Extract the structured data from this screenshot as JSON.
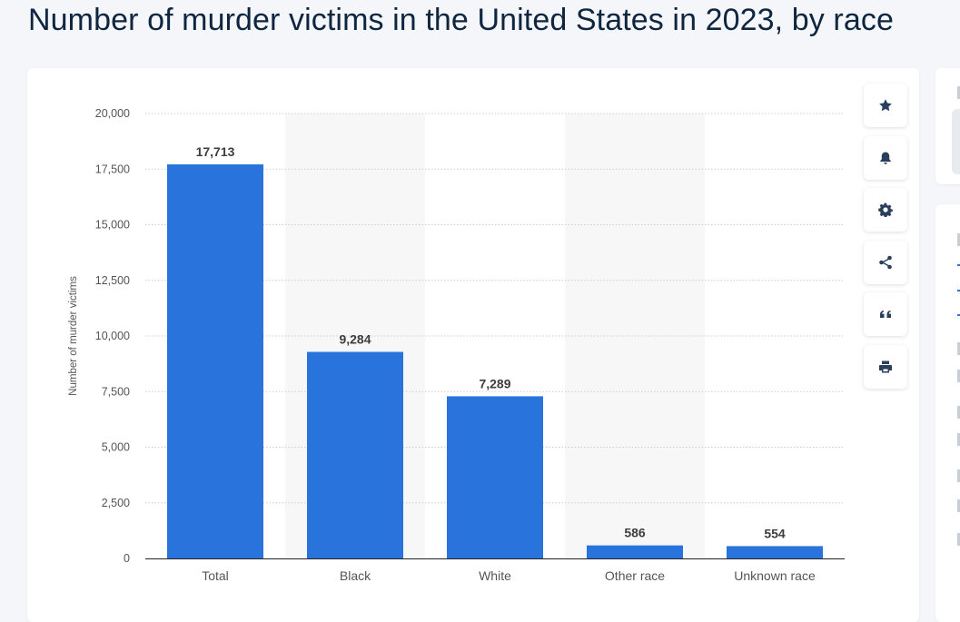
{
  "page": {
    "title": "Number of murder victims in the United States in 2023, by race"
  },
  "toolbar": {
    "buttons": [
      {
        "name": "favorite",
        "icon": "star-icon"
      },
      {
        "name": "notifications",
        "icon": "bell-icon"
      },
      {
        "name": "settings",
        "icon": "gear-icon"
      },
      {
        "name": "share",
        "icon": "share-icon"
      },
      {
        "name": "cite",
        "icon": "quote-icon"
      },
      {
        "name": "print",
        "icon": "printer-icon"
      }
    ]
  },
  "colors": {
    "bar": "#2873dc",
    "title": "#0f2640",
    "grid": "#c9ced6",
    "band": "#f7f7f7",
    "axis_text": "#555555",
    "label_text": "#3d3d3d"
  },
  "chart_data": {
    "type": "bar",
    "title": "Number of murder victims in the United States in 2023, by race",
    "categories": [
      "Total",
      "Black",
      "White",
      "Other race",
      "Unknown race"
    ],
    "values": [
      17713,
      9284,
      7289,
      586,
      554
    ],
    "value_labels": [
      "17,713",
      "9,284",
      "7,289",
      "586",
      "554"
    ],
    "ylabel": "Number of murder victims",
    "xlabel": "",
    "ylim": [
      0,
      20000
    ],
    "yticks": [
      0,
      2500,
      5000,
      7500,
      10000,
      12500,
      15000,
      17500,
      20000
    ],
    "ytick_labels": [
      "0",
      "2,500",
      "5,000",
      "7,500",
      "10,000",
      "12,500",
      "15,000",
      "17,500",
      "20,000"
    ],
    "grid": true,
    "legend": "none"
  }
}
